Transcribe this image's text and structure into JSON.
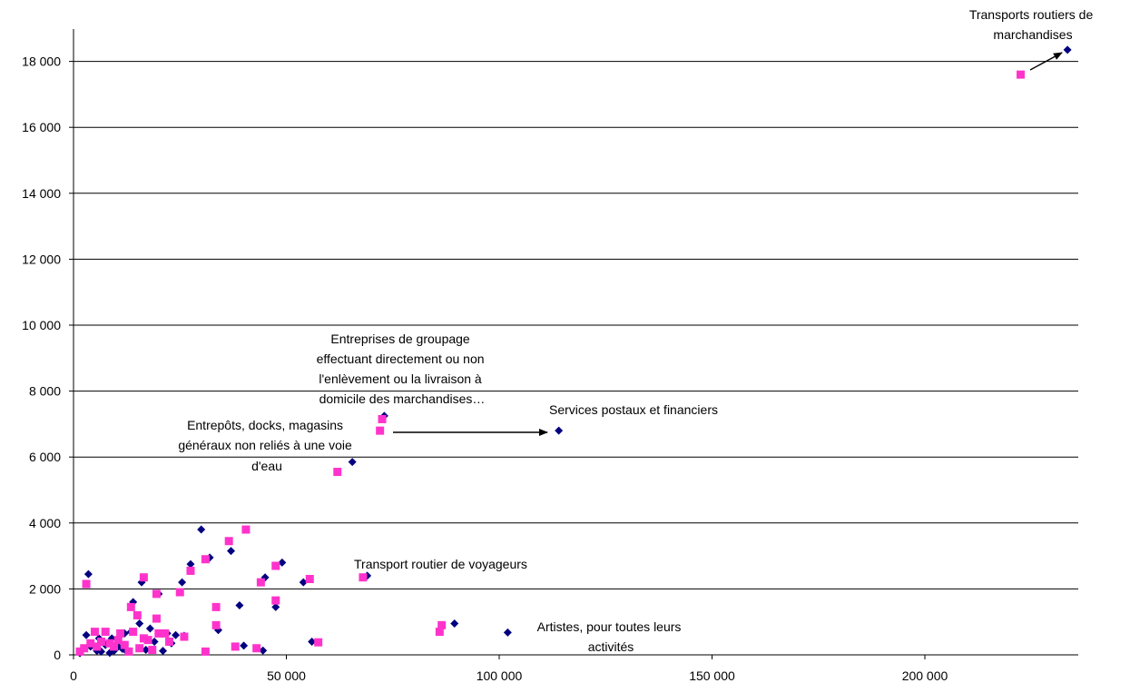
{
  "chart_data": {
    "type": "scatter",
    "title": "",
    "xlabel": "",
    "ylabel": "",
    "xlim": [
      0,
      235000
    ],
    "ylim": [
      0,
      19000
    ],
    "x_ticks": [
      0,
      50000,
      100000,
      150000,
      200000
    ],
    "y_ticks": [
      0,
      2000,
      4000,
      6000,
      8000,
      10000,
      12000,
      14000,
      16000,
      18000
    ],
    "x_tick_labels": [
      "0",
      "50 000",
      "100 000",
      "150 000",
      "200 000"
    ],
    "y_tick_labels": [
      "0",
      "2 000",
      "4 000",
      "6 000",
      "8 000",
      "10 000",
      "12 000",
      "14 000",
      "16 000",
      "18 000"
    ],
    "grid": "horizontal",
    "colors": {
      "series_a": "#000080",
      "series_b": "#ff33cc",
      "gridline": "#000000"
    },
    "series": [
      {
        "marker": "diamond",
        "color": "#000080",
        "points": [
          [
            233500,
            18350
          ],
          [
            73000,
            7250
          ],
          [
            114000,
            6800
          ],
          [
            65500,
            5850
          ],
          [
            69000,
            2400
          ],
          [
            89500,
            950
          ],
          [
            102000,
            680
          ],
          [
            30000,
            3800
          ],
          [
            37000,
            3150
          ],
          [
            32000,
            2950
          ],
          [
            27500,
            2750
          ],
          [
            25500,
            2200
          ],
          [
            45000,
            2350
          ],
          [
            49000,
            2800
          ],
          [
            54000,
            2200
          ],
          [
            47500,
            1450
          ],
          [
            39000,
            1500
          ],
          [
            34000,
            750
          ],
          [
            40000,
            280
          ],
          [
            44500,
            130
          ],
          [
            56000,
            400
          ],
          [
            3500,
            2450
          ],
          [
            16000,
            2200
          ],
          [
            14000,
            1600
          ],
          [
            20000,
            1850
          ],
          [
            15500,
            950
          ],
          [
            18000,
            800
          ],
          [
            22000,
            650
          ],
          [
            24000,
            600
          ],
          [
            26000,
            580
          ],
          [
            23000,
            350
          ],
          [
            21000,
            120
          ],
          [
            1500,
            50
          ],
          [
            2500,
            200
          ],
          [
            4000,
            250
          ],
          [
            5500,
            120
          ],
          [
            6500,
            100
          ],
          [
            7500,
            300
          ],
          [
            8500,
            60
          ],
          [
            9500,
            120
          ],
          [
            10500,
            250
          ],
          [
            11500,
            180
          ],
          [
            12500,
            100
          ],
          [
            13500,
            700
          ],
          [
            17000,
            150
          ],
          [
            19000,
            400
          ],
          [
            3000,
            600
          ],
          [
            6000,
            500
          ],
          [
            9000,
            500
          ],
          [
            12000,
            650
          ]
        ]
      },
      {
        "marker": "square",
        "color": "#ff33cc",
        "points": [
          [
            222500,
            17600
          ],
          [
            72500,
            7150
          ],
          [
            72000,
            6800
          ],
          [
            62000,
            5550
          ],
          [
            68000,
            2350
          ],
          [
            86500,
            900
          ],
          [
            86000,
            700
          ],
          [
            40500,
            3800
          ],
          [
            36500,
            3450
          ],
          [
            31000,
            2900
          ],
          [
            27500,
            2550
          ],
          [
            25000,
            1900
          ],
          [
            44000,
            2200
          ],
          [
            47500,
            2700
          ],
          [
            55500,
            2300
          ],
          [
            47500,
            1650
          ],
          [
            33500,
            1450
          ],
          [
            33500,
            900
          ],
          [
            38000,
            250
          ],
          [
            43000,
            200
          ],
          [
            57500,
            380
          ],
          [
            3000,
            2150
          ],
          [
            16500,
            2350
          ],
          [
            13500,
            1450
          ],
          [
            19500,
            1850
          ],
          [
            15000,
            1200
          ],
          [
            19500,
            1100
          ],
          [
            21500,
            650
          ],
          [
            26000,
            550
          ],
          [
            11000,
            650
          ],
          [
            31000,
            100
          ],
          [
            1500,
            100
          ],
          [
            2500,
            200
          ],
          [
            4000,
            350
          ],
          [
            5000,
            700
          ],
          [
            5500,
            250
          ],
          [
            6500,
            400
          ],
          [
            7500,
            700
          ],
          [
            8500,
            350
          ],
          [
            9500,
            250
          ],
          [
            10500,
            450
          ],
          [
            12000,
            300
          ],
          [
            14000,
            700
          ],
          [
            15500,
            200
          ],
          [
            17500,
            450
          ],
          [
            18500,
            150
          ],
          [
            20000,
            650
          ],
          [
            22500,
            400
          ],
          [
            13000,
            100
          ],
          [
            16500,
            500
          ]
        ]
      }
    ],
    "annotations": [
      {
        "lines": [
          "Transports routiers de",
          "marchandises"
        ]
      },
      {
        "lines": [
          "Entreprises de groupage",
          "effectuant directement ou non",
          "l'enlèvement ou la livraison à",
          "domicile des marchandises…"
        ]
      },
      {
        "lines": [
          "Services postaux et financiers"
        ]
      },
      {
        "lines": [
          "Entrepôts, docks, magasins",
          "généraux non reliés à une voie",
          "d'eau"
        ]
      },
      {
        "lines": [
          "Transport routier de voyageurs"
        ]
      },
      {
        "lines": [
          "Artistes, pour toutes leurs",
          "activités"
        ]
      }
    ]
  }
}
